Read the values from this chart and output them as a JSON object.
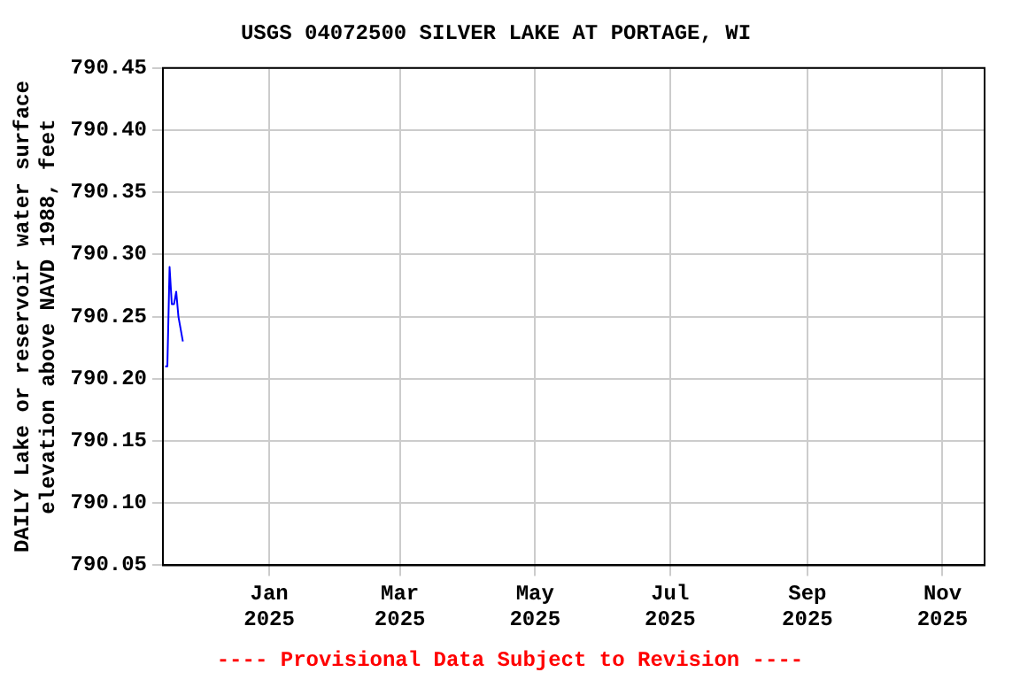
{
  "chart_data": {
    "type": "line",
    "title": "USGS 04072500 SILVER LAKE AT PORTAGE, WI",
    "ylabel": "DAILY Lake or reservoir water surface\nelevation above NAVD 1988, feet",
    "x": [
      "2024-11-15",
      "2024-11-16",
      "2024-11-17",
      "2024-11-18",
      "2024-11-19",
      "2024-11-20",
      "2024-11-21",
      "2024-11-22",
      "2024-11-23"
    ],
    "series": [
      {
        "color": "#0000ff",
        "values": [
          790.21,
          790.21,
          790.29,
          790.26,
          790.26,
          790.27,
          790.25,
          790.24,
          790.23
        ]
      }
    ],
    "xlim": [
      "2024-11-14",
      "2025-11-20"
    ],
    "xticks": [
      {
        "value": "2025-01-01",
        "label": "Jan\n2025"
      },
      {
        "value": "2025-03-01",
        "label": "Mar\n2025"
      },
      {
        "value": "2025-05-01",
        "label": "May\n2025"
      },
      {
        "value": "2025-07-01",
        "label": "Jul\n2025"
      },
      {
        "value": "2025-09-01",
        "label": "Sep\n2025"
      },
      {
        "value": "2025-11-01",
        "label": "Nov\n2025"
      }
    ],
    "ylim": [
      790.05,
      790.45
    ],
    "yticks": [
      {
        "value": 790.05,
        "label": "790.05"
      },
      {
        "value": 790.1,
        "label": "790.10"
      },
      {
        "value": 790.15,
        "label": "790.15"
      },
      {
        "value": 790.2,
        "label": "790.20"
      },
      {
        "value": 790.25,
        "label": "790.25"
      },
      {
        "value": 790.3,
        "label": "790.30"
      },
      {
        "value": 790.35,
        "label": "790.35"
      },
      {
        "value": 790.4,
        "label": "790.40"
      },
      {
        "value": 790.45,
        "label": "790.45"
      }
    ],
    "grid": true,
    "legend": false,
    "marker": "none",
    "line_style": "solid",
    "annotations": [
      "---- Provisional Data Subject to Revision ----"
    ]
  }
}
